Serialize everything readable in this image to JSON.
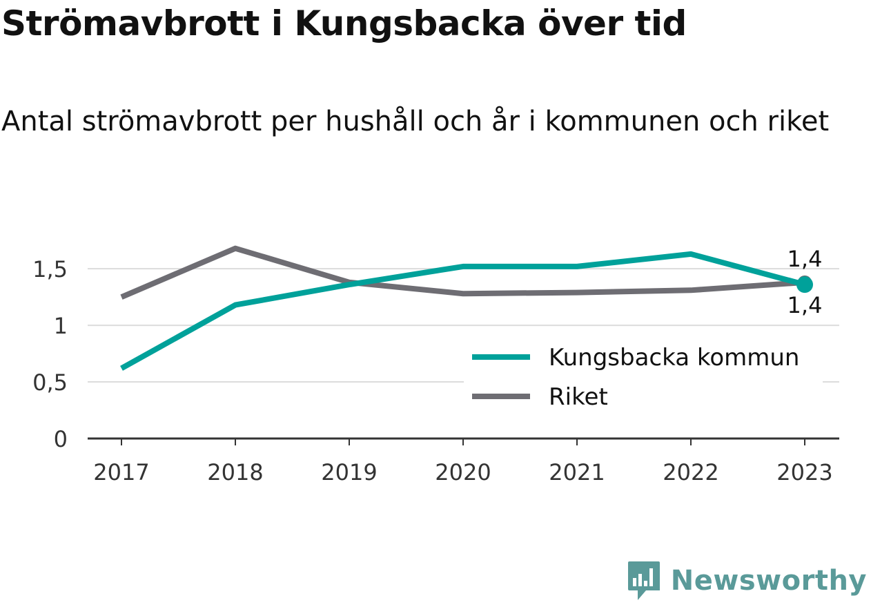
{
  "title": "Strömavbrott i Kungsbacka över tid",
  "subtitle": "Antal strömavbrott per hushåll och år i kommunen och riket",
  "brand": {
    "name": "Newsworthy",
    "icon": "chart-logo-icon",
    "color": "#5a9a99"
  },
  "chart_data": {
    "type": "line",
    "title": "Strömavbrott i Kungsbacka över tid",
    "subtitle": "Antal strömavbrott per hushåll och år i kommunen och riket",
    "categories": [
      "2017",
      "2018",
      "2019",
      "2020",
      "2021",
      "2022",
      "2023"
    ],
    "ylim": [
      0,
      1.8
    ],
    "yticks": [
      0,
      0.5,
      1,
      1.5
    ],
    "ytick_labels": [
      "0",
      "0,5",
      "1",
      "1,5"
    ],
    "grid": true,
    "legend_position": "right",
    "series": [
      {
        "name": "Kungsbacka kommun",
        "color": "#00a19a",
        "values": [
          0.62,
          1.18,
          1.36,
          1.52,
          1.52,
          1.63,
          1.36
        ],
        "end_label": "1,4"
      },
      {
        "name": "Riket",
        "color": "#6e6d73",
        "values": [
          1.25,
          1.68,
          1.38,
          1.28,
          1.29,
          1.31,
          1.38
        ],
        "end_label": "1,4"
      }
    ]
  }
}
